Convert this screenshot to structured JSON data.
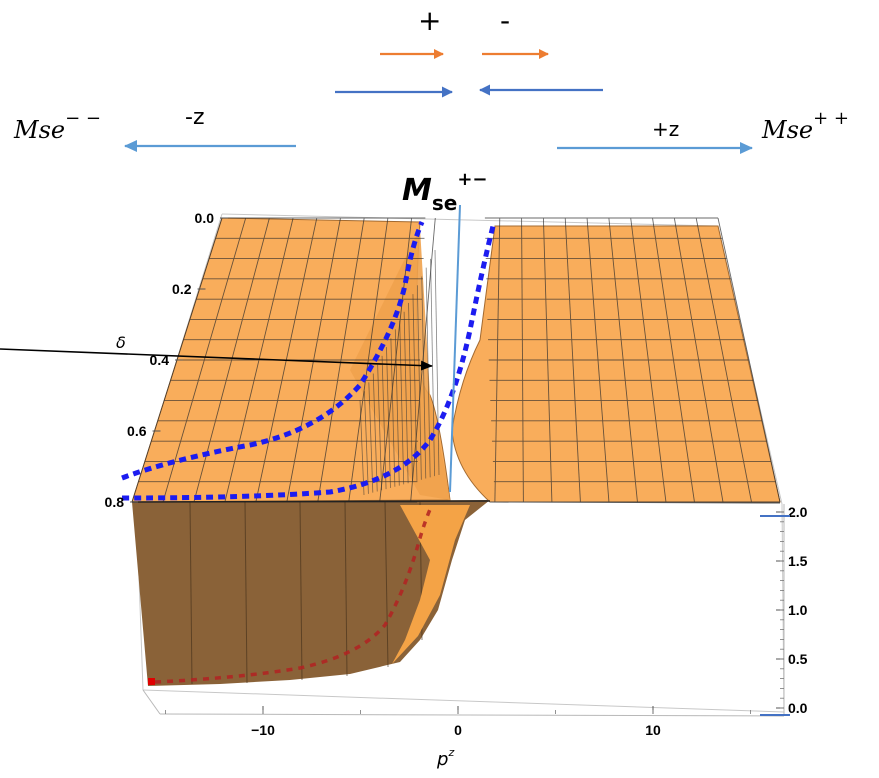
{
  "chart_data": {
    "type": "surface3d",
    "title": "M",
    "title_sub": "se",
    "title_sup": "+−",
    "x_axis": {
      "label": "p",
      "label_sup": "z",
      "range": [
        -16,
        16
      ],
      "ticks": [
        "−10",
        "0",
        "10"
      ],
      "tick_values": [
        -10,
        0,
        10
      ]
    },
    "delta_axis": {
      "label": "δ",
      "range": [
        0,
        0.8
      ],
      "ticks": [
        "0.0",
        "0.2",
        "0.4",
        "0.6",
        "0.8"
      ],
      "tick_values": [
        0,
        0.2,
        0.4,
        0.6,
        0.8
      ]
    },
    "z_axis": {
      "range": [
        0,
        2
      ],
      "ticks": [
        "2.0",
        "1.5",
        "1.0",
        "0.5",
        "0.0"
      ],
      "tick_values": [
        2,
        1.5,
        1,
        0.5,
        0
      ]
    },
    "surface_color": "#f9ad5b",
    "boundary_color": "#1c1cf0",
    "floor_curve_color": "#b22222"
  },
  "annotations": {
    "plus_label": "+",
    "minus_label": "-",
    "left_label": "-z",
    "right_label": "+z",
    "mse_left_base": "Mse",
    "mse_left_sup": "− −",
    "mse_right_base": "Mse",
    "mse_right_sup": "+ +",
    "orange_arrow_color": "#ed7d31",
    "blue_arrow_color": "#4472c4",
    "light_arrow_color": "#5b9bd5"
  }
}
